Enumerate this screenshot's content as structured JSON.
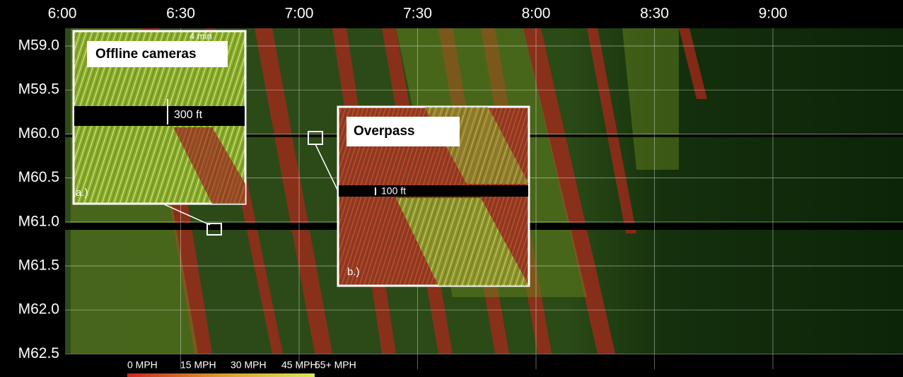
{
  "time_labels": [
    "6:00",
    "6:30",
    "7:00",
    "7:30",
    "8:00",
    "8:30",
    "9:00"
  ],
  "mile_labels": [
    "M59.0",
    "M59.5",
    "M60.0",
    "M60.5",
    "M61.0",
    "M61.5",
    "M62.0",
    "M62.5"
  ],
  "legend_labels": [
    "0 MPH",
    "15 MPH",
    "30 MPH",
    "45 MPH",
    "55+ MPH"
  ],
  "insets": [
    {
      "title": "Offline cameras",
      "measure": "300 ft",
      "tag": "a.)",
      "note": "4 min"
    },
    {
      "title": "Overpass",
      "measure": "100 ft",
      "tag": "b.)"
    }
  ]
}
